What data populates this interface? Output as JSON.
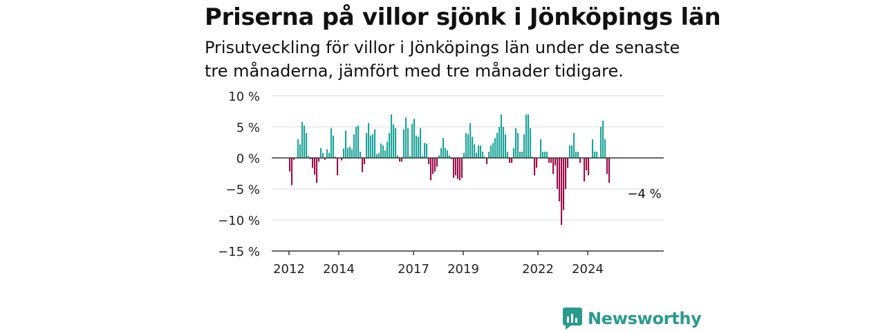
{
  "title": "Priserna på villor sjönk i Jönköpings län",
  "subtitle": "Prisutveckling för villor i Jönköpings län under de senaste tre månaderna, jämfört med tre månader tidigare.",
  "brand": {
    "name": "Newsworthy",
    "icon": "bar-chart-speech-bubble-icon"
  },
  "colors": {
    "positive": "#17a398",
    "negative": "#9b0d48",
    "axis": "#333333",
    "grid": "#d9d9d9"
  },
  "chart_data": {
    "type": "bar",
    "x_start": "2012-01",
    "x_step": "month",
    "y_ticks": [
      10,
      5,
      0,
      -5,
      -10,
      -15
    ],
    "y_tick_labels": [
      "10 %",
      "5 %",
      "0 %",
      "−5 %",
      "−10 %",
      "−15 %"
    ],
    "ylim": [
      -15,
      10
    ],
    "x_ticks": [
      2012,
      2014,
      2017,
      2019,
      2022,
      2024
    ],
    "grid": true,
    "annotation": {
      "label": "−4 %",
      "value": -4
    },
    "values": [
      -2.2,
      -4.4,
      -0.3,
      0,
      3.0,
      2.2,
      5.8,
      5.2,
      4.0,
      0.3,
      -0.2,
      -1.6,
      -2.7,
      -4.0,
      -0.6,
      1.6,
      0.8,
      -0.3,
      1.4,
      0.8,
      4.8,
      3.6,
      0.2,
      -2.8,
      0,
      -0.4,
      1.5,
      4.4,
      1.6,
      1.8,
      1.4,
      3.8,
      5.0,
      5.2,
      1.0,
      -2.3,
      -1.0,
      4.0,
      5.6,
      3.6,
      3.8,
      4.6,
      0.6,
      0.8,
      2.3,
      2.0,
      1.2,
      2.6,
      4.0,
      7.0,
      5.4,
      4.8,
      0.4,
      -0.6,
      -0.6,
      4.6,
      6.5,
      4.8,
      0.3,
      5.5,
      6.3,
      3.6,
      3.4,
      4.8,
      0.3,
      2.4,
      2.3,
      -1.0,
      -3.6,
      -2.6,
      -2.2,
      -1.4,
      0.4,
      1.6,
      3.2,
      1.6,
      1.2,
      0.4,
      -0.2,
      -3.2,
      -2.8,
      -3.4,
      -3.6,
      -3.2,
      0.8,
      4.0,
      3.8,
      5.6,
      3.4,
      2.2,
      0.8,
      2.0,
      2.0,
      1.0,
      0.2,
      -1.0,
      1.0,
      2.0,
      2.4,
      3.2,
      4.0,
      5.0,
      7.0,
      5.0,
      3.8,
      1.0,
      -0.8,
      -0.8,
      1.6,
      4.8,
      4.0,
      1.0,
      1.0,
      3.8,
      7.0,
      7.0,
      4.8,
      0.2,
      -2.8,
      -1.6,
      0,
      3.0,
      1.0,
      1.0,
      1.0,
      -0.8,
      -0.8,
      -2.6,
      -1.2,
      -5.0,
      -7.0,
      -10.8,
      -8.4,
      -5.0,
      -1.6,
      2.0,
      2.0,
      4.0,
      1.0,
      1.0,
      -0.8,
      0,
      -3.8,
      -2.0,
      -2.8,
      0,
      3.0,
      1.0,
      1.0,
      0,
      5.0,
      6.0,
      3.0,
      -2.6,
      -4.0
    ]
  }
}
